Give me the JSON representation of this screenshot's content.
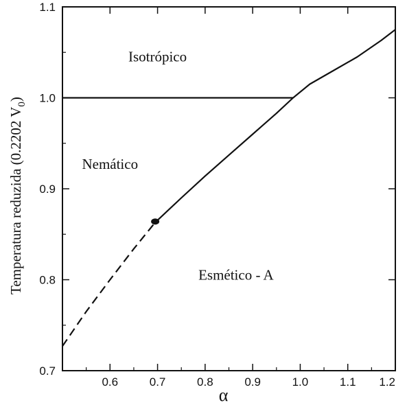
{
  "chart_data": {
    "type": "line",
    "title": "",
    "xlabel": "α",
    "ylabel": "Temperatura reduzida (0.2202 V",
    "ylabel_subscript": "0",
    "ylabel_close": ")",
    "xlim": [
      0.5,
      1.2
    ],
    "ylim": [
      0.7,
      1.1
    ],
    "x_ticks": [
      0.6,
      0.7,
      0.8,
      0.9,
      1.0,
      1.1,
      1.2
    ],
    "x_tick_labels": [
      "0.6",
      "0.7",
      "0.8",
      "0.9",
      "1.0",
      "1.1",
      "1.2"
    ],
    "y_ticks": [
      0.7,
      0.8,
      0.9,
      1.0,
      1.1
    ],
    "y_tick_labels": [
      "0.7",
      "0.8",
      "0.9",
      "1.0",
      "1.1"
    ],
    "grid": false,
    "series": [
      {
        "style": "solid",
        "x": [
          0.5,
          0.985
        ],
        "y": [
          1.0,
          1.0
        ]
      },
      {
        "style": "solid",
        "x": [
          0.695,
          0.75,
          0.8,
          0.85,
          0.9,
          0.95,
          0.985,
          1.02,
          1.07,
          1.12,
          1.17,
          1.2
        ],
        "y": [
          0.863,
          0.89,
          0.914,
          0.937,
          0.96,
          0.983,
          1.0,
          1.015,
          1.03,
          1.045,
          1.063,
          1.075
        ]
      },
      {
        "style": "dashed",
        "x": [
          0.5,
          0.55,
          0.6,
          0.65,
          0.695
        ],
        "y": [
          0.727,
          0.765,
          0.8,
          0.834,
          0.863
        ]
      }
    ],
    "points": [
      {
        "x": 0.695,
        "y": 0.864
      }
    ],
    "annotations": [
      {
        "text": "Isotrópico",
        "x": 0.7,
        "y": 1.04
      },
      {
        "text": "Nemático",
        "x": 0.6,
        "y": 0.922
      },
      {
        "text": "Esmético - A",
        "x": 0.865,
        "y": 0.8
      }
    ]
  }
}
